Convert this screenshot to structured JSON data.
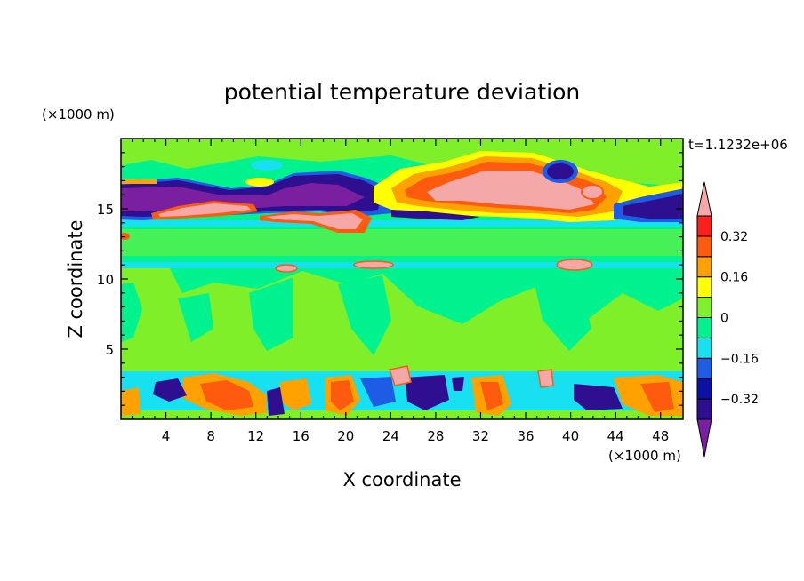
{
  "chart_data": {
    "type": "heatmap",
    "title": "potential temperature deviation",
    "xlabel": "X coordinate",
    "ylabel": "Z coordinate",
    "x_unit": "(×1000 m)",
    "y_unit": "(×1000 m)",
    "time_label": "t=1.1232e+06",
    "xlim": [
      0,
      50
    ],
    "ylim": [
      0,
      20
    ],
    "x_ticks": [
      4,
      8,
      12,
      16,
      20,
      24,
      28,
      32,
      36,
      40,
      44,
      48
    ],
    "y_ticks": [
      5,
      10,
      15
    ],
    "colorbar": {
      "levels": [
        -0.4,
        -0.32,
        -0.24,
        -0.16,
        -0.08,
        0,
        0.08,
        0.16,
        0.24,
        0.32,
        0.4
      ],
      "labels": [
        "0.32",
        "0.16",
        "0",
        "-0.16",
        "-0.32"
      ],
      "label_values": [
        0.32,
        0.16,
        0,
        -0.16,
        -0.32
      ],
      "colors": [
        "#7a1fa0",
        "#2e0f8f",
        "#0a11a6",
        "#1e5ce6",
        "#17e1f0",
        "#00f28f",
        "#7fef2a",
        "#ffff00",
        "#ffa200",
        "#ff5b0f",
        "#ff1f1f",
        "#f4a8a8"
      ],
      "extend": "both"
    },
    "features": [
      {
        "desc": "cold band upper left",
        "x": [
          0,
          20
        ],
        "z": [
          14.3,
          17.3
        ],
        "value": -0.32
      },
      {
        "desc": "warm patch upper right",
        "x": [
          25,
          41
        ],
        "z": [
          14.8,
          18.3
        ],
        "value": 0.4
      },
      {
        "desc": "warm thin patches near 15 km",
        "x": [
          5,
          21
        ],
        "z": [
          13.5,
          15.5
        ],
        "value": 0.4
      },
      {
        "desc": "cold band upper right edge",
        "x": [
          44,
          50
        ],
        "z": [
          14.3,
          16.2
        ],
        "value": -0.32
      },
      {
        "desc": "cold blob upper right",
        "x": [
          38,
          40.5
        ],
        "z": [
          17.3,
          18.6
        ],
        "value": -0.32
      },
      {
        "desc": "cyan horizontal band",
        "x": [
          0,
          50
        ],
        "z": [
          10.8,
          11.3
        ],
        "value": -0.1
      },
      {
        "desc": "cyan horizontal band upper",
        "x": [
          0,
          50
        ],
        "z": [
          13.8,
          14.2
        ],
        "value": -0.1
      },
      {
        "desc": "turbulent boundary layer mixed warm/cold",
        "x": [
          0,
          50
        ],
        "z": [
          0,
          3.6
        ],
        "value": 0
      }
    ]
  }
}
